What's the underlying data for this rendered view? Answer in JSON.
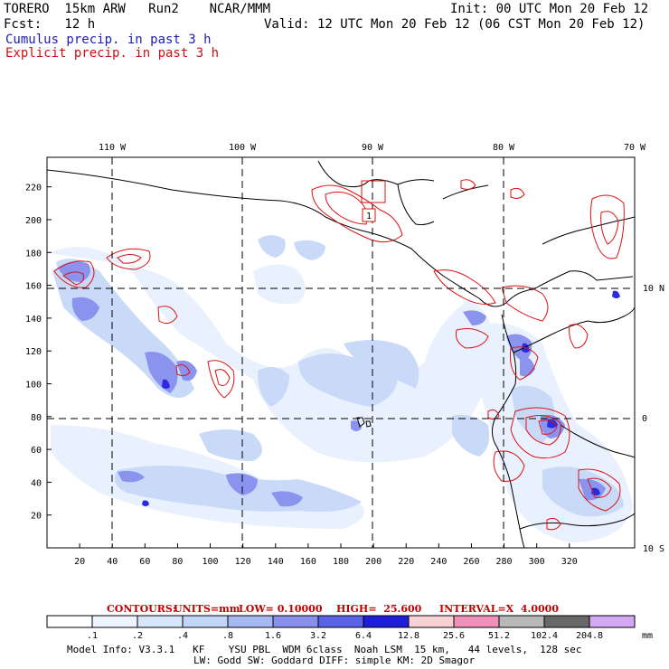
{
  "header": {
    "model": "TORERO  15km ARW   Run2    NCAR/MMM",
    "init": "Init: 00 UTC Mon 20 Feb 12",
    "fcst": "Fcst:   12 h",
    "valid": "Valid: 12 UTC Mon 20 Feb 12 (06 CST Mon 20 Feb 12)",
    "cumulus": "Cumulus precip. in past 3 h",
    "explicit": "Explicit precip. in past 3 h"
  },
  "colors": {
    "cumulus_text": "#1c1cb0",
    "explicit_text": "#d01010",
    "contour": "#e01010",
    "coast": "#000000"
  },
  "map": {
    "lon_labels": [
      "110 W",
      "100 W",
      "90 W",
      "80 W",
      "70 W"
    ],
    "lat_labels": [
      "10 N",
      "0",
      "10 S"
    ],
    "x_ticks": [
      "20",
      "40",
      "60",
      "80",
      "100",
      "120",
      "140",
      "160",
      "180",
      "200",
      "220",
      "240",
      "260",
      "280",
      "300",
      "320"
    ],
    "y_ticks": [
      "220",
      "200",
      "180",
      "160",
      "140",
      "120",
      "100",
      "80",
      "60",
      "40",
      "20"
    ],
    "box_label": "1"
  },
  "contours": {
    "label": "CONTOURS:",
    "units": "UNITS=mm",
    "low": "LOW= 0.10000",
    "high": "HIGH=  25.600",
    "interval": "INTERVAL=X  4.0000"
  },
  "colorbar": {
    "labels": [
      ".1",
      ".2",
      ".4",
      ".8",
      "1.6",
      "3.2",
      "6.4",
      "12.8",
      "25.6",
      "51.2",
      "102.4",
      "204.8"
    ],
    "unit": "mm",
    "colors": [
      "#ffffff",
      "#eef4ff",
      "#d8e6fc",
      "#c2d4f8",
      "#a6b8f4",
      "#8890ec",
      "#5a62e8",
      "#1e1ed8",
      "#f8d0d6",
      "#f090b8",
      "#b8b8b8",
      "#686868",
      "#d4a8f4"
    ]
  },
  "footer": {
    "line1": "Model Info: V3.3.1   KF    YSU PBL  WDM 6class  Noah LSM  15 km,   44 levels,  128 sec",
    "line2": "LW: Godd SW: Goddard DIFF: simple KM: 2D Smagor"
  }
}
